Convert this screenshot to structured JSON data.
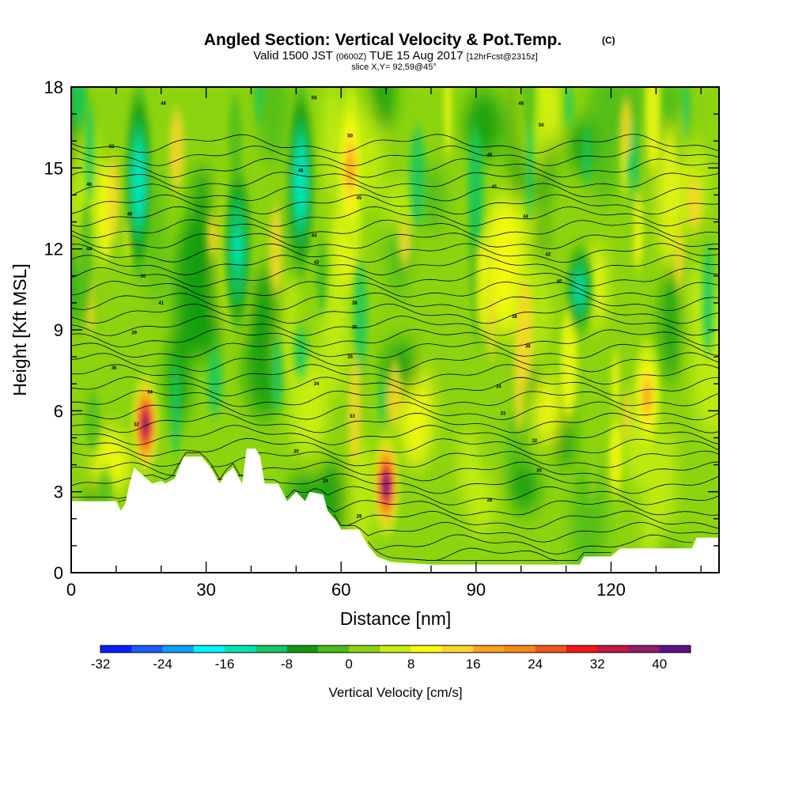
{
  "header": {
    "title": "Angled Section: Vertical Velocity & Pot.Temp.",
    "title_mark": "(C)",
    "valid_prefix": "Valid 1500 JST",
    "valid_utc": "(0600Z)",
    "valid_date": "TUE 15 Aug 2017",
    "forecast": "[12hrFcst@2315z]",
    "slice": "slice X,Y= 92,59@45°"
  },
  "chart_data": {
    "type": "heatmap",
    "xlabel": "Distance [nm]",
    "ylabel": "Height [Kft MSL]",
    "xlim": [
      0,
      144
    ],
    "ylim": [
      0,
      18
    ],
    "x_ticks": [
      0,
      30,
      60,
      90,
      120
    ],
    "y_ticks": [
      0,
      3,
      6,
      9,
      12,
      15,
      18
    ],
    "grid": false,
    "colorbar": {
      "label": "Vertical Velocity [cm/s]",
      "min": -32,
      "max": 44,
      "tick_values": [
        -32,
        -24,
        -16,
        -8,
        0,
        8,
        16,
        24,
        32,
        40
      ],
      "colors": [
        "#0a1fff",
        "#1a5cff",
        "#0ea0ff",
        "#00f7ff",
        "#00e4b4",
        "#10c865",
        "#109c10",
        "#4cbc18",
        "#8cd410",
        "#c6ee10",
        "#fdfd12",
        "#fbd72a",
        "#fca21f",
        "#f88916",
        "#f5551c",
        "#f41515",
        "#c81446",
        "#941a6a",
        "#5e0f8a"
      ]
    },
    "terrain_kft": [
      [
        0,
        2.65
      ],
      [
        10,
        2.65
      ],
      [
        11,
        2.3
      ],
      [
        12,
        2.55
      ],
      [
        13,
        3.3
      ],
      [
        14,
        3.9
      ],
      [
        18,
        3.3
      ],
      [
        20,
        3.4
      ],
      [
        21,
        3.3
      ],
      [
        23,
        3.5
      ],
      [
        25,
        4.3
      ],
      [
        29,
        4.3
      ],
      [
        31,
        3.9
      ],
      [
        33,
        3.3
      ],
      [
        34,
        3.6
      ],
      [
        36,
        3.9
      ],
      [
        38,
        3.3
      ],
      [
        39,
        4.6
      ],
      [
        41,
        4.6
      ],
      [
        42,
        4.3
      ],
      [
        43,
        3.3
      ],
      [
        46,
        3.3
      ],
      [
        47,
        3.0
      ],
      [
        48,
        2.65
      ],
      [
        50,
        3.0
      ],
      [
        52,
        2.65
      ],
      [
        53,
        3.0
      ],
      [
        56,
        2.9
      ],
      [
        57,
        2.3
      ],
      [
        59,
        1.9
      ],
      [
        60,
        1.6
      ],
      [
        64,
        1.6
      ],
      [
        66,
        1.0
      ],
      [
        68,
        0.6
      ],
      [
        71,
        0.4
      ],
      [
        80,
        0.3
      ],
      [
        90,
        0.3
      ],
      [
        98,
        0.3
      ],
      [
        113,
        0.3
      ],
      [
        114,
        0.6
      ],
      [
        120,
        0.6
      ],
      [
        122,
        0.9
      ],
      [
        126,
        0.9
      ],
      [
        128,
        0.9
      ],
      [
        138,
        0.9
      ],
      [
        139,
        1.3
      ],
      [
        144,
        1.3
      ]
    ],
    "features": [
      {
        "name": "downdraft",
        "x": 15,
        "y_min": 11,
        "y_max": 18,
        "w": -16
      },
      {
        "name": "updraft",
        "x": 16.5,
        "y_min": 3.8,
        "y_max": 7.2,
        "w": 36
      },
      {
        "name": "downdraft",
        "x": 51,
        "y_min": 11,
        "y_max": 18,
        "w": -16
      },
      {
        "name": "downdraft",
        "x": 37,
        "y_min": 9,
        "y_max": 15,
        "w": -14
      },
      {
        "name": "updraft",
        "x": 70,
        "y_min": 1.5,
        "y_max": 5,
        "w": 40
      },
      {
        "name": "updraft",
        "x": 62,
        "y_min": 12,
        "y_max": 18,
        "w": 18
      },
      {
        "name": "updraft",
        "x": 128,
        "y_min": 4.5,
        "y_max": 8.5,
        "w": 18
      },
      {
        "name": "downdraft",
        "x": 113,
        "y_min": 9,
        "y_max": 12,
        "w": -14
      }
    ],
    "theta_contour_labels": [
      {
        "x": 20.5,
        "y": 17.4,
        "text": "46"
      },
      {
        "x": 9,
        "y": 15.8,
        "text": "52"
      },
      {
        "x": 4,
        "y": 14.4,
        "text": "46"
      },
      {
        "x": 13,
        "y": 13.3,
        "text": "46"
      },
      {
        "x": 4,
        "y": 12.0,
        "text": "44"
      },
      {
        "x": 16,
        "y": 11.0,
        "text": "50"
      },
      {
        "x": 20,
        "y": 10.0,
        "text": "41"
      },
      {
        "x": 14,
        "y": 8.9,
        "text": "39"
      },
      {
        "x": 9.5,
        "y": 7.6,
        "text": "36"
      },
      {
        "x": 17.5,
        "y": 6.7,
        "text": "34"
      },
      {
        "x": 14.5,
        "y": 5.5,
        "text": "32"
      },
      {
        "x": 54,
        "y": 17.6,
        "text": "58"
      },
      {
        "x": 51,
        "y": 14.9,
        "text": "48"
      },
      {
        "x": 62,
        "y": 16.2,
        "text": "50"
      },
      {
        "x": 64,
        "y": 13.9,
        "text": "45"
      },
      {
        "x": 54,
        "y": 12.5,
        "text": "44"
      },
      {
        "x": 54.5,
        "y": 11.5,
        "text": "42"
      },
      {
        "x": 63,
        "y": 10.0,
        "text": "38"
      },
      {
        "x": 63,
        "y": 9.1,
        "text": "36"
      },
      {
        "x": 62,
        "y": 8.0,
        "text": "35"
      },
      {
        "x": 54.5,
        "y": 7.0,
        "text": "34"
      },
      {
        "x": 62.5,
        "y": 5.8,
        "text": "33"
      },
      {
        "x": 50,
        "y": 4.5,
        "text": "30"
      },
      {
        "x": 56.5,
        "y": 3.4,
        "text": "29"
      },
      {
        "x": 64,
        "y": 2.1,
        "text": "28"
      },
      {
        "x": 100,
        "y": 17.4,
        "text": "48"
      },
      {
        "x": 104.5,
        "y": 16.6,
        "text": "50"
      },
      {
        "x": 93,
        "y": 15.5,
        "text": "48"
      },
      {
        "x": 94,
        "y": 14.3,
        "text": "45"
      },
      {
        "x": 101,
        "y": 13.2,
        "text": "44"
      },
      {
        "x": 106,
        "y": 11.8,
        "text": "42"
      },
      {
        "x": 108.5,
        "y": 10.8,
        "text": "40"
      },
      {
        "x": 98.5,
        "y": 9.5,
        "text": "38"
      },
      {
        "x": 101.5,
        "y": 8.4,
        "text": "36"
      },
      {
        "x": 95,
        "y": 6.9,
        "text": "34"
      },
      {
        "x": 96,
        "y": 5.9,
        "text": "33"
      },
      {
        "x": 103,
        "y": 4.9,
        "text": "32"
      },
      {
        "x": 104,
        "y": 3.8,
        "text": "30"
      },
      {
        "x": 93,
        "y": 2.7,
        "text": "28"
      }
    ]
  }
}
